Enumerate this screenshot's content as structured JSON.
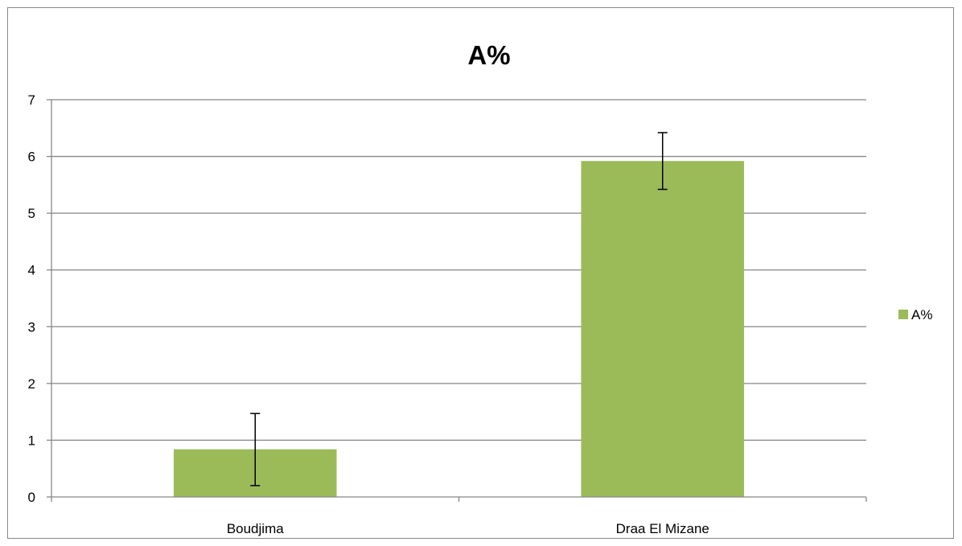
{
  "chart_data": {
    "type": "bar",
    "title": "A%",
    "categories": [
      "Boudjima",
      "Draa El Mizane"
    ],
    "series": [
      {
        "name": "A%",
        "values": [
          0.84,
          5.92
        ],
        "error_low": [
          0.2,
          5.42
        ],
        "error_high": [
          1.47,
          6.42
        ]
      }
    ],
    "yticks": [
      "0",
      "1",
      "2",
      "3",
      "4",
      "5",
      "6",
      "7"
    ],
    "ylim": [
      0,
      7
    ],
    "grid": true,
    "legend": "right",
    "colors": {
      "bar": "#9BBB59",
      "grid": "#878787",
      "axis": "#878787",
      "errorbar": "#000000"
    }
  }
}
